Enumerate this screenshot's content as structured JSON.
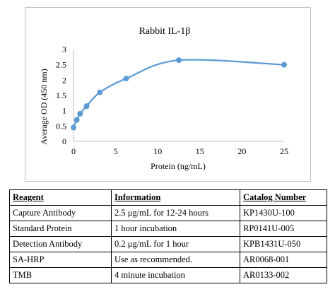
{
  "chart_data": {
    "type": "line",
    "title": "Rabbit IL-1β",
    "xlabel": "Protein (ng/mL)",
    "ylabel": "Average OD (450 nm)",
    "xlim": [
      0,
      25
    ],
    "ylim": [
      0,
      3
    ],
    "xticks": [
      0,
      5,
      10,
      15,
      20,
      25
    ],
    "yticks": [
      0,
      0.5,
      1,
      1.5,
      2,
      2.5,
      3
    ],
    "ytick_labels": [
      "0",
      "0.5",
      "1",
      "1.5",
      "2",
      "2.5",
      "3"
    ],
    "grid": false,
    "legend": "none",
    "color": "#5b9bd5",
    "series": [
      {
        "x": [
          0,
          0.39,
          0.78,
          1.56,
          3.13,
          6.25,
          12.5,
          25
        ],
        "y": [
          0.45,
          0.7,
          0.9,
          1.15,
          1.6,
          2.05,
          2.65,
          2.5
        ]
      }
    ]
  },
  "table": {
    "headers": [
      "Reagent",
      "Information",
      "Catalog Number"
    ],
    "rows": [
      [
        "Capture Antibody",
        "2.5 μg/mL for 12-24 hours",
        "KP1430U-100"
      ],
      [
        "Standard Protein",
        "1 hour incubation",
        "RP0141U-005"
      ],
      [
        "Detection Antibody",
        "0.2 μg/mL for 1 hour",
        "KPB1431U-050"
      ],
      [
        "SA-HRP",
        "Use as recommended.",
        "AR0068-001"
      ],
      [
        "TMB",
        "4 minute incubation",
        "AR0133-002"
      ]
    ]
  }
}
